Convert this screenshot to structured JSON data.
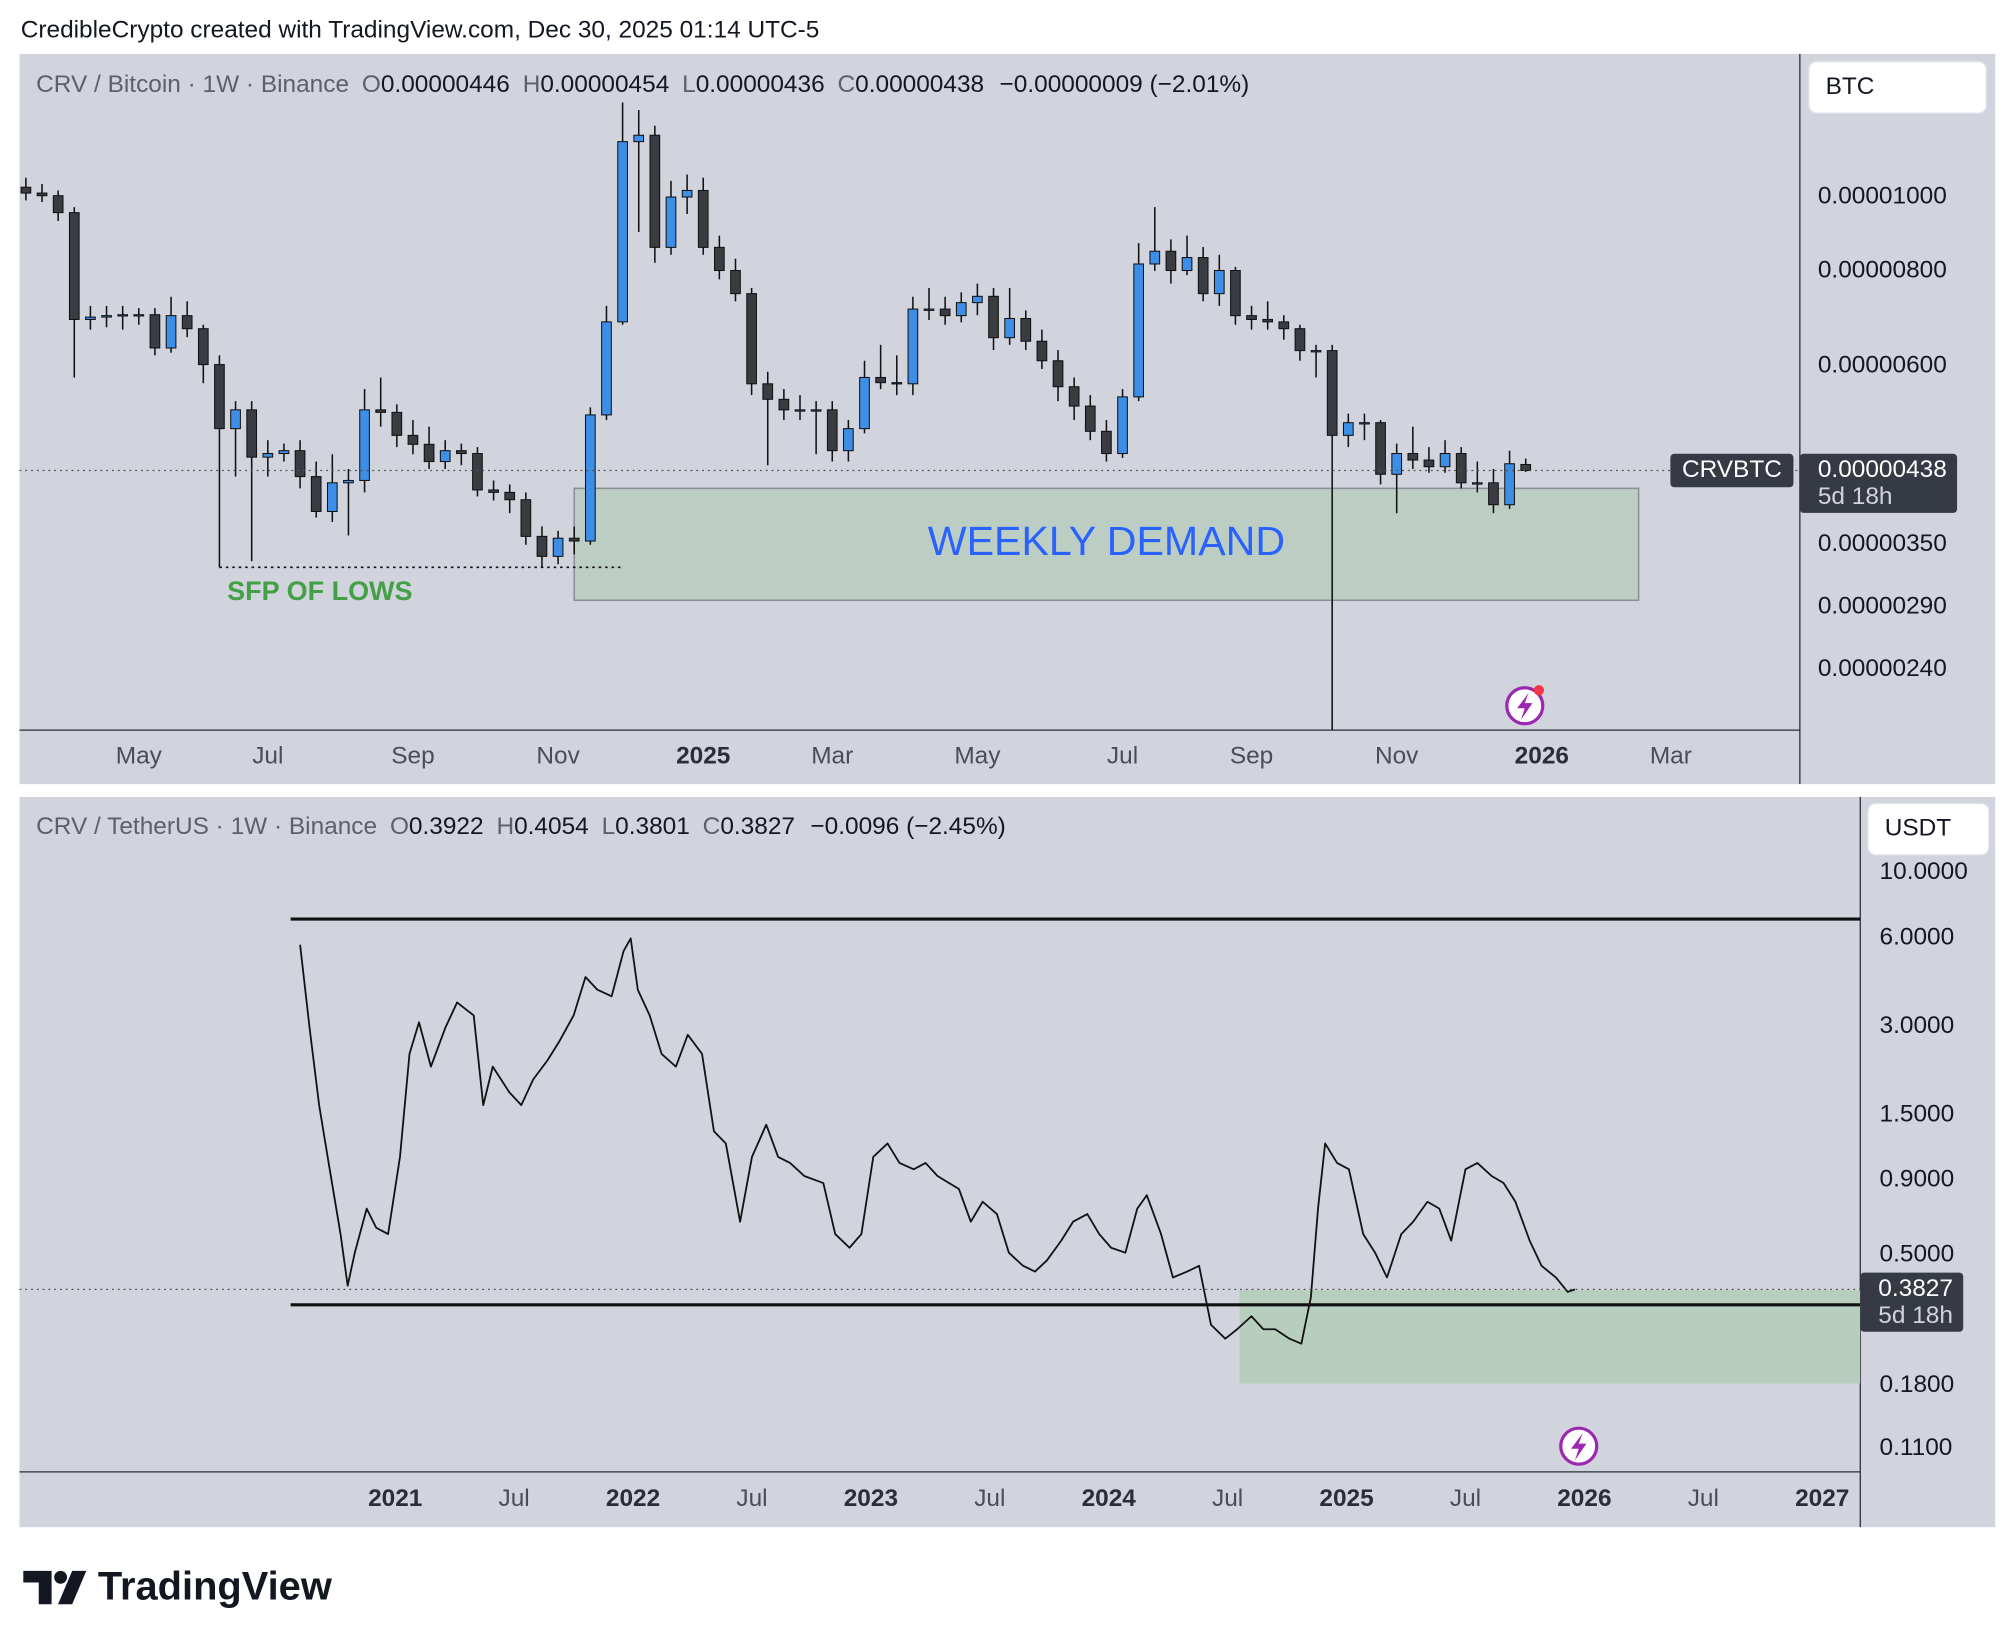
{
  "header": "CredibleCrypto created with TradingView.com, Dec 30, 2025 01:14 UTC-5",
  "footer": {
    "logo": "TradingView"
  },
  "chart_data": [
    {
      "type": "candlestick",
      "symbol": "CRV / Bitcoin · 1W · Binance",
      "ohlc": [
        {
          "key": "O",
          "value": "0.00000446"
        },
        {
          "key": "H",
          "value": "0.00000454"
        },
        {
          "key": "L",
          "value": "0.00000436"
        },
        {
          "key": "C",
          "value": "0.00000438"
        }
      ],
      "change": "−0.00000009 (−2.01%)",
      "currency": "BTC",
      "log_scale": true,
      "grid": false,
      "up_color": "#3d8ee6",
      "down_color": "#3b3c42",
      "xlim": [
        -0.4,
        110
      ],
      "xticks": [
        {
          "value": 7,
          "label": "May"
        },
        {
          "value": 15,
          "label": "Jul"
        },
        {
          "value": 24,
          "label": "Sep"
        },
        {
          "value": 33,
          "label": "Nov"
        },
        {
          "value": 42,
          "label": "2025"
        },
        {
          "value": 50,
          "label": "Mar"
        },
        {
          "value": 59,
          "label": "May"
        },
        {
          "value": 68,
          "label": "Jul"
        },
        {
          "value": 76,
          "label": "Sep"
        },
        {
          "value": 85,
          "label": "Nov"
        },
        {
          "value": 94,
          "label": "2026"
        },
        {
          "value": 102,
          "label": "Mar"
        }
      ],
      "ylim": [
        2e-06,
        1.54e-05
      ],
      "yticks": [
        {
          "value": 1e-05,
          "label": "0.00001000"
        },
        {
          "value": 8e-06,
          "label": "0.00000800"
        },
        {
          "value": 6e-06,
          "label": "0.00000600"
        },
        {
          "value": 3.5e-06,
          "label": "0.00000350"
        },
        {
          "value": 2.9e-06,
          "label": "0.00000290"
        },
        {
          "value": 2.4e-06,
          "label": "0.00000240"
        }
      ],
      "candles": [
        [
          1.03e-05,
          1.06e-05,
          9.9e-06,
          1.012e-05
        ],
        [
          1.012e-05,
          1.04e-05,
          9.85e-06,
          1.004e-05
        ],
        [
          1.004e-05,
          1.02e-05,
          9.3e-06,
          9.54e-06
        ],
        [
          9.54e-06,
          9.7e-06,
          5.8e-06,
          6.91e-06
        ],
        [
          6.91e-06,
          7.2e-06,
          6.7e-06,
          6.96e-06
        ],
        [
          6.96e-06,
          7.2e-06,
          6.75e-06,
          6.99e-06
        ],
        [
          6.99e-06,
          7.2e-06,
          6.7e-06,
          7.01e-06
        ],
        [
          7.01e-06,
          7.15e-06,
          6.8e-06,
          7.01e-06
        ],
        [
          7.01e-06,
          7.15e-06,
          6.2e-06,
          6.34e-06
        ],
        [
          6.34e-06,
          7.4e-06,
          6.25e-06,
          6.99e-06
        ],
        [
          6.99e-06,
          7.3e-06,
          6.55e-06,
          6.72e-06
        ],
        [
          6.72e-06,
          6.8e-06,
          5.7e-06,
          6.03e-06
        ],
        [
          6.03e-06,
          6.2e-06,
          3.27e-06,
          4.97e-06
        ],
        [
          4.97e-06,
          5.4e-06,
          4.3e-06,
          5.26e-06
        ],
        [
          5.26e-06,
          5.4e-06,
          3.33e-06,
          4.56e-06
        ],
        [
          4.56e-06,
          4.8e-06,
          4.3e-06,
          4.61e-06
        ],
        [
          4.61e-06,
          4.75e-06,
          4.5e-06,
          4.65e-06
        ],
        [
          4.65e-06,
          4.8e-06,
          4.15e-06,
          4.3e-06
        ],
        [
          4.3e-06,
          4.5e-06,
          3.8e-06,
          3.87e-06
        ],
        [
          3.87e-06,
          4.6e-06,
          3.75e-06,
          4.22e-06
        ],
        [
          4.22e-06,
          4.4e-06,
          3.6e-06,
          4.25e-06
        ],
        [
          4.25e-06,
          5.6e-06,
          4.1e-06,
          5.26e-06
        ],
        [
          5.26e-06,
          5.8e-06,
          5e-06,
          5.22e-06
        ],
        [
          5.22e-06,
          5.35e-06,
          4.7e-06,
          4.87e-06
        ],
        [
          4.87e-06,
          5.1e-06,
          4.6e-06,
          4.74e-06
        ],
        [
          4.74e-06,
          5e-06,
          4.4e-06,
          4.5e-06
        ],
        [
          4.5e-06,
          4.8e-06,
          4.4e-06,
          4.65e-06
        ],
        [
          4.65e-06,
          4.75e-06,
          4.45e-06,
          4.61e-06
        ],
        [
          4.61e-06,
          4.7e-06,
          4.05e-06,
          4.13e-06
        ],
        [
          4.13e-06,
          4.25e-06,
          4e-06,
          4.1e-06
        ],
        [
          4.1e-06,
          4.2e-06,
          3.85e-06,
          4.01e-06
        ],
        [
          4.01e-06,
          4.1e-06,
          3.5e-06,
          3.59e-06
        ],
        [
          3.59e-06,
          3.7e-06,
          3.27e-06,
          3.38e-06
        ],
        [
          3.38e-06,
          3.65e-06,
          3.3e-06,
          3.57e-06
        ],
        [
          3.57e-06,
          3.7e-06,
          3.4e-06,
          3.54e-06
        ],
        [
          3.54e-06,
          5.3e-06,
          3.5e-06,
          5.18e-06
        ],
        [
          5.18e-06,
          7.2e-06,
          5.1e-06,
          6.86e-06
        ],
        [
          6.86e-06,
          1.33e-05,
          6.8e-06,
          1.182e-05
        ],
        [
          1.182e-05,
          1.3e-05,
          9e-06,
          1.205e-05
        ],
        [
          1.205e-05,
          1.24e-05,
          8.2e-06,
          8.59e-06
        ],
        [
          8.59e-06,
          1.05e-05,
          8.4e-06,
          1e-05
        ],
        [
          1e-05,
          1.07e-05,
          9.5e-06,
          1.02e-05
        ],
        [
          1.02e-05,
          1.06e-05,
          8.4e-06,
          8.59e-06
        ],
        [
          8.59e-06,
          8.9e-06,
          7.8e-06,
          8.01e-06
        ],
        [
          8.01e-06,
          8.3e-06,
          7.3e-06,
          7.47e-06
        ],
        [
          7.47e-06,
          7.6e-06,
          5.5e-06,
          5.69e-06
        ],
        [
          5.69e-06,
          5.9e-06,
          4.45e-06,
          5.43e-06
        ],
        [
          5.43e-06,
          5.6e-06,
          5.1e-06,
          5.26e-06
        ],
        [
          5.26e-06,
          5.5e-06,
          5.1e-06,
          5.26e-06
        ],
        [
          5.26e-06,
          5.4e-06,
          4.6e-06,
          5.26e-06
        ],
        [
          5.26e-06,
          5.4e-06,
          4.5e-06,
          4.65e-06
        ],
        [
          4.65e-06,
          5.1e-06,
          4.5e-06,
          4.97e-06
        ],
        [
          4.97e-06,
          6.1e-06,
          4.9e-06,
          5.8e-06
        ],
        [
          5.8e-06,
          6.4e-06,
          5.6e-06,
          5.71e-06
        ],
        [
          5.71e-06,
          6.2e-06,
          5.5e-06,
          5.69e-06
        ],
        [
          5.69e-06,
          7.4e-06,
          5.5e-06,
          7.13e-06
        ],
        [
          7.13e-06,
          7.6e-06,
          6.9e-06,
          7.13e-06
        ],
        [
          7.13e-06,
          7.4e-06,
          6.8e-06,
          6.99e-06
        ],
        [
          6.99e-06,
          7.5e-06,
          6.85e-06,
          7.27e-06
        ],
        [
          7.27e-06,
          7.7e-06,
          7e-06,
          7.41e-06
        ],
        [
          7.41e-06,
          7.6e-06,
          6.3e-06,
          6.54e-06
        ],
        [
          6.54e-06,
          7.6e-06,
          6.4e-06,
          6.93e-06
        ],
        [
          6.93e-06,
          7.1e-06,
          6.3e-06,
          6.47e-06
        ],
        [
          6.47e-06,
          6.7e-06,
          5.95e-06,
          6.1e-06
        ],
        [
          6.1e-06,
          6.3e-06,
          5.4e-06,
          5.64e-06
        ],
        [
          5.64e-06,
          5.8e-06,
          5.1e-06,
          5.32e-06
        ],
        [
          5.32e-06,
          5.5e-06,
          4.8e-06,
          4.93e-06
        ],
        [
          4.93e-06,
          5.1e-06,
          4.5e-06,
          4.61e-06
        ],
        [
          4.61e-06,
          5.6e-06,
          4.55e-06,
          5.47e-06
        ],
        [
          5.47e-06,
          8.7e-06,
          5.4e-06,
          8.17e-06
        ],
        [
          8.17e-06,
          9.7e-06,
          8e-06,
          8.49e-06
        ],
        [
          8.49e-06,
          8.8e-06,
          7.7e-06,
          8.01e-06
        ],
        [
          8.01e-06,
          8.9e-06,
          7.9e-06,
          8.33e-06
        ],
        [
          8.33e-06,
          8.6e-06,
          7.3e-06,
          7.47e-06
        ],
        [
          7.47e-06,
          8.4e-06,
          7.2e-06,
          8.01e-06
        ],
        [
          8.01e-06,
          8.1e-06,
          6.8e-06,
          6.99e-06
        ],
        [
          6.99e-06,
          7.2e-06,
          6.7e-06,
          6.91e-06
        ],
        [
          6.91e-06,
          7.3e-06,
          6.7e-06,
          6.86e-06
        ],
        [
          6.86e-06,
          7e-06,
          6.5e-06,
          6.72e-06
        ],
        [
          6.72e-06,
          6.8e-06,
          6.1e-06,
          6.29e-06
        ],
        [
          6.29e-06,
          6.4e-06,
          5.8e-06,
          6.29e-06
        ],
        [
          6.29e-06,
          6.4e-06,
          2e-06,
          4.87e-06
        ],
        [
          4.87e-06,
          5.2e-06,
          4.7e-06,
          5.06e-06
        ],
        [
          5.06e-06,
          5.2e-06,
          4.8e-06,
          5.06e-06
        ],
        [
          5.06e-06,
          5.1e-06,
          4.2e-06,
          4.33e-06
        ],
        [
          4.33e-06,
          4.75e-06,
          3.85e-06,
          4.61e-06
        ],
        [
          4.61e-06,
          5e-06,
          4.4e-06,
          4.52e-06
        ],
        [
          4.52e-06,
          4.7e-06,
          4.35e-06,
          4.43e-06
        ],
        [
          4.43e-06,
          4.8e-06,
          4.35e-06,
          4.61e-06
        ],
        [
          4.61e-06,
          4.7e-06,
          4.15e-06,
          4.22e-06
        ],
        [
          4.22e-06,
          4.5e-06,
          4.1e-06,
          4.22e-06
        ],
        [
          4.22e-06,
          4.4e-06,
          3.85e-06,
          3.95e-06
        ],
        [
          3.95e-06,
          4.65e-06,
          3.9e-06,
          4.47e-06
        ],
        [
          4.46e-06,
          4.54e-06,
          4.36e-06,
          4.38e-06
        ]
      ],
      "zones": [
        {
          "label": "WEEKLY DEMAND",
          "label_color": "#2962ff",
          "x": [
            34,
            100
          ],
          "y": [
            2.96e-06,
            4.15e-06
          ],
          "color": "#bccdc3",
          "stroke": "#8a8f96"
        }
      ],
      "levels": [
        {
          "label": "SFP OF LOWS",
          "label_color": "#43a047",
          "value": 3.27e-06,
          "x": [
            12,
            37
          ],
          "style": "dotted"
        }
      ],
      "last": {
        "symbol": "CRVBTC",
        "value": 4.38e-06,
        "label": "0.00000438",
        "countdown": "5d 18h"
      }
    },
    {
      "type": "line",
      "symbol": "CRV / TetherUS · 1W · Binance",
      "ohlc": [
        {
          "key": "O",
          "value": "0.3922"
        },
        {
          "key": "H",
          "value": "0.4054"
        },
        {
          "key": "L",
          "value": "0.3801"
        },
        {
          "key": "C",
          "value": "0.3827"
        }
      ],
      "change": "−0.0096 (−2.45%)",
      "currency": "USDT",
      "log_scale": true,
      "grid": false,
      "color": "#111111",
      "xlim": [
        2019.42,
        2027.16
      ],
      "xticks": [
        2021,
        {
          "value": 2021.5,
          "label": "Jul"
        },
        2022,
        {
          "value": 2022.5,
          "label": "Jul"
        },
        2023,
        {
          "value": 2023.5,
          "label": "Jul"
        },
        2024,
        {
          "value": 2024.5,
          "label": "Jul"
        },
        2025,
        {
          "value": 2025.5,
          "label": "Jul"
        },
        2026,
        {
          "value": 2026.5,
          "label": "Jul"
        },
        2027
      ],
      "ylim": [
        0.0916,
        18.1
      ],
      "yticks": [
        {
          "value": 10,
          "label": "10.0000"
        },
        {
          "value": 6,
          "label": "6.0000"
        },
        {
          "value": 3,
          "label": "3.0000"
        },
        {
          "value": 1.5,
          "label": "1.5000"
        },
        {
          "value": 0.9,
          "label": "0.9000"
        },
        {
          "value": 0.5,
          "label": "0.5000"
        },
        {
          "value": 0.18,
          "label": "0.1800"
        },
        {
          "value": 0.11,
          "label": "0.1100"
        }
      ],
      "x": [
        2020.6,
        2020.64,
        2020.68,
        2020.72,
        2020.77,
        2020.8,
        2020.83,
        2020.88,
        2020.92,
        2020.97,
        2021.02,
        2021.06,
        2021.1,
        2021.15,
        2021.21,
        2021.26,
        2021.33,
        2021.37,
        2021.41,
        2021.48,
        2021.53,
        2021.58,
        2021.64,
        2021.69,
        2021.75,
        2021.8,
        2021.85,
        2021.91,
        2021.96,
        2021.99,
        2022.02,
        2022.07,
        2022.12,
        2022.18,
        2022.23,
        2022.29,
        2022.34,
        2022.39,
        2022.45,
        2022.5,
        2022.56,
        2022.61,
        2022.66,
        2022.72,
        2022.8,
        2022.85,
        2022.91,
        2022.96,
        2023.01,
        2023.07,
        2023.12,
        2023.18,
        2023.23,
        2023.28,
        2023.37,
        2023.42,
        2023.47,
        2023.53,
        2023.58,
        2023.64,
        2023.69,
        2023.74,
        2023.8,
        2023.85,
        2023.91,
        2023.96,
        2024.01,
        2024.07,
        2024.12,
        2024.16,
        2024.22,
        2024.27,
        2024.33,
        2024.38,
        2024.43,
        2024.49,
        2024.54,
        2024.6,
        2024.65,
        2024.7,
        2024.76,
        2024.81,
        2024.85,
        2024.88,
        2024.91,
        2024.96,
        2025.01,
        2025.07,
        2025.12,
        2025.17,
        2025.23,
        2025.28,
        2025.34,
        2025.39,
        2025.44,
        2025.5,
        2025.55,
        2025.61,
        2025.66,
        2025.71,
        2025.77,
        2025.82,
        2025.88,
        2025.93,
        2025.96
      ],
      "values": [
        5.69,
        2.96,
        1.62,
        1.03,
        0.59,
        0.394,
        0.51,
        0.72,
        0.62,
        0.59,
        1.08,
        2.42,
        3.1,
        2.19,
        2.96,
        3.62,
        3.27,
        1.62,
        2.19,
        1.79,
        1.62,
        1.98,
        2.3,
        2.67,
        3.27,
        4.42,
        4.0,
        3.8,
        5.41,
        5.98,
        4.0,
        3.27,
        2.42,
        2.19,
        2.81,
        2.42,
        1.32,
        1.2,
        0.65,
        1.08,
        1.39,
        1.08,
        1.03,
        0.93,
        0.88,
        0.59,
        0.53,
        0.59,
        1.08,
        1.2,
        1.03,
        0.98,
        1.03,
        0.93,
        0.84,
        0.65,
        0.76,
        0.69,
        0.51,
        0.46,
        0.44,
        0.48,
        0.56,
        0.65,
        0.69,
        0.59,
        0.53,
        0.51,
        0.72,
        0.8,
        0.59,
        0.42,
        0.44,
        0.46,
        0.29,
        0.26,
        0.28,
        0.31,
        0.28,
        0.28,
        0.26,
        0.25,
        0.36,
        0.72,
        1.2,
        1.03,
        0.98,
        0.59,
        0.51,
        0.42,
        0.59,
        0.65,
        0.76,
        0.72,
        0.56,
        0.98,
        1.03,
        0.93,
        0.88,
        0.76,
        0.56,
        0.46,
        0.42,
        0.375,
        0.3827
      ],
      "zones": [
        {
          "x": [
            2024.55,
            2027.16
          ],
          "y": [
            0.183,
            0.38
          ],
          "color": "#b7cebf",
          "stroke": "none"
        }
      ],
      "levels": [
        {
          "value": 6.96,
          "x": [
            2020.56,
            2027.16
          ],
          "style": "solid"
        },
        {
          "value": 0.339,
          "x": [
            2020.56,
            2027.16
          ],
          "style": "solid"
        }
      ],
      "last": {
        "value": 0.3827,
        "label": "0.3827",
        "countdown": "5d 18h"
      }
    }
  ]
}
